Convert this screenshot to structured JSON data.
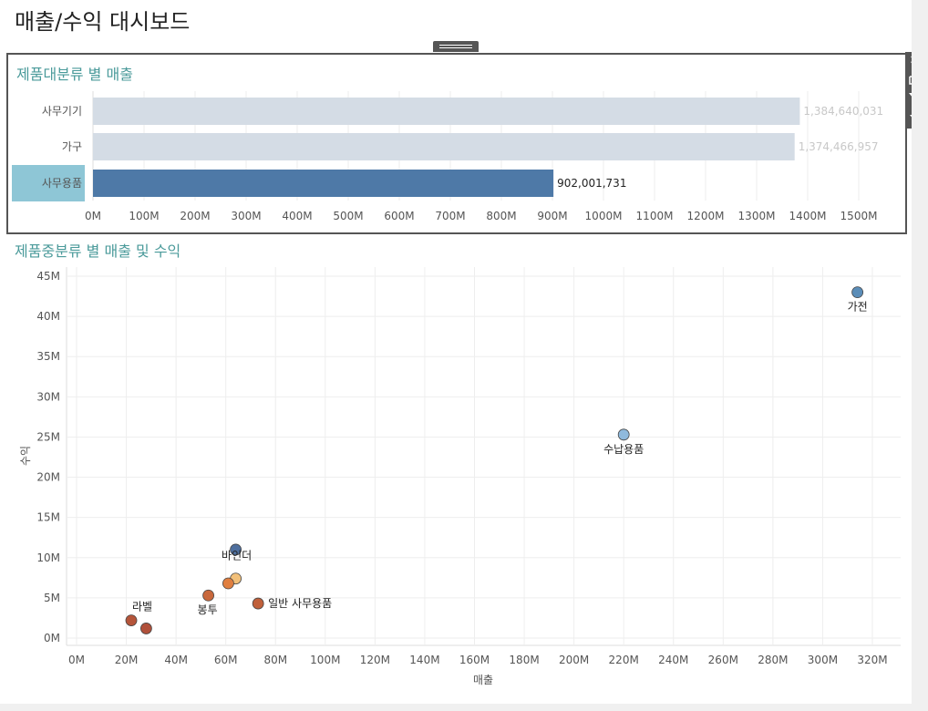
{
  "dashboard": {
    "title": "매출/수익 대시보드"
  },
  "toolbar": {
    "close_icon": "close-icon",
    "popout_icon": "popout-icon",
    "filter_icon": "filter-icon",
    "menu_icon": "dropdown-icon"
  },
  "colors": {
    "title_teal": "#4a9a9a",
    "bar_selected": "#4e79a7",
    "bar_unselected": "#d4dce5",
    "selected_cat_bg": "#8ec6d6"
  },
  "chart_data": [
    {
      "type": "bar",
      "title": "제품대분류 별 매출",
      "categories": [
        "사무기기",
        "가구",
        "사무용품"
      ],
      "values": [
        1384640031,
        1374466957,
        902001731
      ],
      "value_labels": [
        "1,384,640,031",
        "1,374,466,957",
        "902,001,731"
      ],
      "selected": "사무용품",
      "xlim": [
        0,
        1500000000
      ],
      "xticks": [
        "0M",
        "100M",
        "200M",
        "300M",
        "400M",
        "500M",
        "600M",
        "700M",
        "800M",
        "900M",
        "1000M",
        "1100M",
        "1200M",
        "1300M",
        "1400M",
        "1500M"
      ],
      "xlabel": "",
      "ylabel": "",
      "grid": true
    },
    {
      "type": "scatter",
      "title": "제품중분류 별 매출 및 수익",
      "xlabel": "매출",
      "ylabel": "수익",
      "xlim": [
        0,
        320000000
      ],
      "ylim": [
        0,
        45000000
      ],
      "xticks": [
        "0M",
        "20M",
        "40M",
        "60M",
        "80M",
        "100M",
        "120M",
        "140M",
        "160M",
        "180M",
        "200M",
        "220M",
        "240M",
        "260M",
        "280M",
        "300M",
        "320M"
      ],
      "yticks": [
        "0M",
        "5M",
        "10M",
        "15M",
        "20M",
        "25M",
        "30M",
        "35M",
        "40M",
        "45M"
      ],
      "grid": true,
      "points": [
        {
          "label": "가전",
          "x": 314000000,
          "y": 43000000,
          "color": "#5b8db8"
        },
        {
          "label": "수납용품",
          "x": 220000000,
          "y": 25300000,
          "color": "#8fb9dc"
        },
        {
          "label": "",
          "x": 64000000,
          "y": 11000000,
          "color": "#4e6f9e"
        },
        {
          "label": "바인더",
          "x": 64000000,
          "y": 7400000,
          "color": "#f2c07a"
        },
        {
          "label": "",
          "x": 61000000,
          "y": 6800000,
          "color": "#e07f40"
        },
        {
          "label": "봉투",
          "x": 53000000,
          "y": 5300000,
          "color": "#c8683c"
        },
        {
          "label": "일반 사무용품",
          "x": 73000000,
          "y": 4300000,
          "color": "#c0603a"
        },
        {
          "label": "라벨",
          "x": 22000000,
          "y": 2200000,
          "color": "#b5553a"
        },
        {
          "label": "",
          "x": 28000000,
          "y": 1200000,
          "color": "#b0503a"
        }
      ]
    }
  ]
}
